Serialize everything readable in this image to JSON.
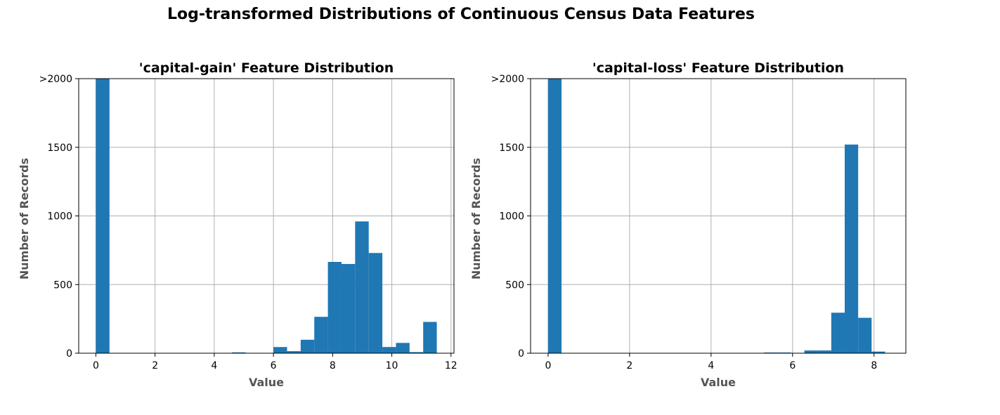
{
  "figure": {
    "suptitle": "Log-transformed Distributions of Continuous Census Data Features"
  },
  "colors": {
    "bar": "#1f77b4",
    "grid": "#b0b0b0",
    "axis": "#000000",
    "label": "#555555"
  },
  "chart_data": [
    {
      "type": "bar",
      "title": "'capital-gain' Feature Distribution",
      "xlabel": "Value",
      "ylabel": "Number of Records",
      "xlim": [
        -0.58,
        12.1
      ],
      "ylim": [
        0,
        2000
      ],
      "xticks": [
        0,
        2,
        4,
        6,
        8,
        10,
        12
      ],
      "yticks": [
        0,
        500,
        1000,
        1500,
        2000
      ],
      "ytick_labels": [
        "0",
        "500",
        "1000",
        "1500",
        ">2000"
      ],
      "grid": true,
      "bins": [
        {
          "x0": 0.0,
          "x1": 0.46,
          "value": 2000
        },
        {
          "x0": 4.6,
          "x1": 5.06,
          "value": 6
        },
        {
          "x0": 6.0,
          "x1": 6.46,
          "value": 45
        },
        {
          "x0": 6.46,
          "x1": 6.92,
          "value": 15
        },
        {
          "x0": 6.92,
          "x1": 7.38,
          "value": 98
        },
        {
          "x0": 7.38,
          "x1": 7.84,
          "value": 265
        },
        {
          "x0": 7.84,
          "x1": 8.3,
          "value": 665
        },
        {
          "x0": 8.3,
          "x1": 8.76,
          "value": 650
        },
        {
          "x0": 8.76,
          "x1": 9.22,
          "value": 960
        },
        {
          "x0": 9.22,
          "x1": 9.68,
          "value": 730
        },
        {
          "x0": 9.68,
          "x1": 10.14,
          "value": 45
        },
        {
          "x0": 10.14,
          "x1": 10.6,
          "value": 75
        },
        {
          "x0": 10.6,
          "x1": 11.06,
          "value": 8
        },
        {
          "x0": 11.06,
          "x1": 11.52,
          "value": 228
        }
      ]
    },
    {
      "type": "bar",
      "title": "'capital-loss' Feature Distribution",
      "xlabel": "Value",
      "ylabel": "Number of Records",
      "xlim": [
        -0.43,
        8.78
      ],
      "ylim": [
        0,
        2000
      ],
      "xticks": [
        0,
        2,
        4,
        6,
        8
      ],
      "yticks": [
        0,
        500,
        1000,
        1500,
        2000
      ],
      "ytick_labels": [
        "0",
        "500",
        "1000",
        "1500",
        ">2000"
      ],
      "grid": true,
      "bins": [
        {
          "x0": 0.0,
          "x1": 0.33,
          "value": 2000
        },
        {
          "x0": 5.3,
          "x1": 5.63,
          "value": 5
        },
        {
          "x0": 5.63,
          "x1": 5.96,
          "value": 5
        },
        {
          "x0": 6.29,
          "x1": 6.62,
          "value": 20
        },
        {
          "x0": 6.62,
          "x1": 6.95,
          "value": 20
        },
        {
          "x0": 6.95,
          "x1": 7.28,
          "value": 295
        },
        {
          "x0": 7.28,
          "x1": 7.61,
          "value": 1520
        },
        {
          "x0": 7.61,
          "x1": 7.94,
          "value": 258
        },
        {
          "x0": 7.94,
          "x1": 8.27,
          "value": 12
        }
      ]
    }
  ]
}
